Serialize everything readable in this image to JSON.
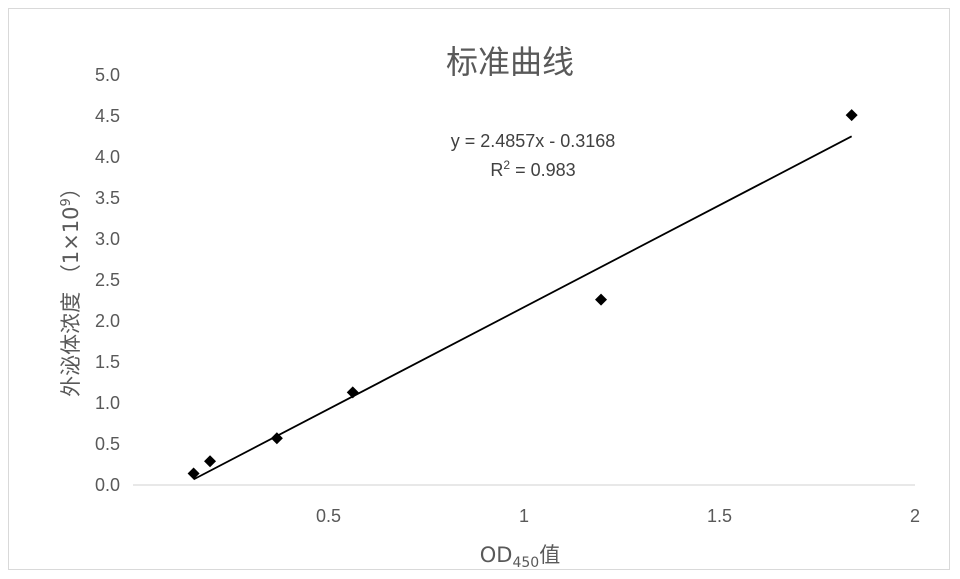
{
  "chart_data": {
    "type": "scatter",
    "title": "标准曲线",
    "xlabel_main": "OD",
    "xlabel_sub": "450",
    "xlabel_tail": "值",
    "ylabel_main": "外泌体浓度 （1×10",
    "ylabel_sup": "9",
    "ylabel_tail": "）",
    "xlim": [
      0,
      2
    ],
    "ylim": [
      0,
      5
    ],
    "xticks": [
      0.5,
      1,
      1.5,
      2
    ],
    "xtick_labels": [
      "0.5",
      "1",
      "1.5",
      "2"
    ],
    "yticks": [
      0,
      0.5,
      1,
      1.5,
      2,
      2.5,
      3,
      3.5,
      4,
      4.5,
      5
    ],
    "ytick_labels": [
      "0.0",
      "0.5",
      "1.0",
      "1.5",
      "2.0",
      "2.5",
      "3.0",
      "3.5",
      "4.0",
      "4.5",
      "5.0"
    ],
    "series": [
      {
        "x": [
          0.155,
          0.197,
          0.368,
          0.562,
          1.197,
          1.838
        ],
        "y": [
          0.14,
          0.29,
          0.57,
          1.13,
          2.26,
          4.51
        ],
        "marker": "diamond",
        "color": "#000000"
      }
    ],
    "trendline": {
      "type": "linear",
      "slope": 2.4857,
      "intercept": -0.3168,
      "x_range": [
        0.155,
        1.838
      ],
      "equation": "y = 2.4857x - 0.3168",
      "r2_main": "R",
      "r2_sup": "2",
      "r2_tail": " = 0.983"
    },
    "grid": false,
    "legend": "none"
  }
}
